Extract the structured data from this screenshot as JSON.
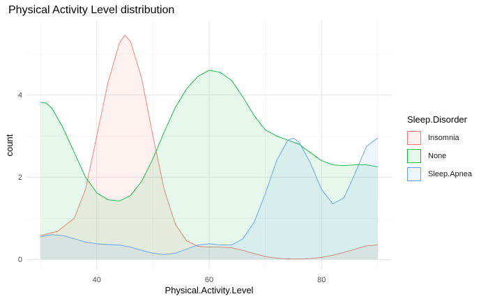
{
  "chart_data": {
    "type": "area",
    "title": "Physical Activity Level distribution",
    "xlabel": "Physical.Activity.Level",
    "ylabel": "count",
    "xlim": [
      27.5,
      92.5
    ],
    "ylim": [
      -0.25,
      5.8
    ],
    "x_ticks": [
      40,
      60,
      80
    ],
    "y_ticks": [
      0,
      2,
      4
    ],
    "grid": true,
    "legend_title": "Sleep.Disorder",
    "legend_position": "right",
    "series": [
      {
        "name": "Insomnia",
        "color": "#f8766d",
        "fill": "#f8766d",
        "points": [
          [
            30,
            0.58
          ],
          [
            33,
            0.68
          ],
          [
            36,
            1.0
          ],
          [
            38,
            1.7
          ],
          [
            40,
            3.0
          ],
          [
            42,
            4.3
          ],
          [
            44,
            5.25
          ],
          [
            45,
            5.45
          ],
          [
            46,
            5.3
          ],
          [
            48,
            4.4
          ],
          [
            50,
            3.0
          ],
          [
            52,
            1.7
          ],
          [
            54,
            0.85
          ],
          [
            56,
            0.45
          ],
          [
            58,
            0.32
          ],
          [
            60,
            0.3
          ],
          [
            62,
            0.3
          ],
          [
            64,
            0.28
          ],
          [
            66,
            0.22
          ],
          [
            68,
            0.14
          ],
          [
            70,
            0.07
          ],
          [
            72,
            0.03
          ],
          [
            74,
            0.01
          ],
          [
            76,
            0.01
          ],
          [
            78,
            0.02
          ],
          [
            80,
            0.05
          ],
          [
            82,
            0.1
          ],
          [
            84,
            0.17
          ],
          [
            86,
            0.25
          ],
          [
            88,
            0.33
          ],
          [
            90,
            0.35
          ]
        ]
      },
      {
        "name": "None",
        "color": "#00ba38",
        "fill": "#00ba38",
        "points": [
          [
            30,
            3.82
          ],
          [
            31,
            3.8
          ],
          [
            32,
            3.68
          ],
          [
            34,
            3.2
          ],
          [
            36,
            2.6
          ],
          [
            38,
            2.0
          ],
          [
            40,
            1.62
          ],
          [
            42,
            1.45
          ],
          [
            44,
            1.42
          ],
          [
            46,
            1.55
          ],
          [
            48,
            1.9
          ],
          [
            50,
            2.45
          ],
          [
            52,
            3.1
          ],
          [
            54,
            3.7
          ],
          [
            56,
            4.15
          ],
          [
            58,
            4.45
          ],
          [
            60,
            4.6
          ],
          [
            62,
            4.55
          ],
          [
            64,
            4.35
          ],
          [
            66,
            3.95
          ],
          [
            68,
            3.5
          ],
          [
            70,
            3.15
          ],
          [
            72,
            3.0
          ],
          [
            74,
            2.9
          ],
          [
            76,
            2.8
          ],
          [
            78,
            2.6
          ],
          [
            80,
            2.4
          ],
          [
            82,
            2.3
          ],
          [
            84,
            2.28
          ],
          [
            86,
            2.3
          ],
          [
            88,
            2.3
          ],
          [
            90,
            2.25
          ]
        ]
      },
      {
        "name": "Sleep.Apnea",
        "color": "#619cff",
        "fill": "#619cff",
        "points": [
          [
            30,
            0.55
          ],
          [
            32,
            0.6
          ],
          [
            34,
            0.58
          ],
          [
            36,
            0.5
          ],
          [
            38,
            0.42
          ],
          [
            40,
            0.38
          ],
          [
            42,
            0.36
          ],
          [
            44,
            0.35
          ],
          [
            46,
            0.3
          ],
          [
            48,
            0.22
          ],
          [
            50,
            0.15
          ],
          [
            52,
            0.12
          ],
          [
            54,
            0.15
          ],
          [
            56,
            0.25
          ],
          [
            58,
            0.35
          ],
          [
            60,
            0.38
          ],
          [
            62,
            0.35
          ],
          [
            64,
            0.35
          ],
          [
            66,
            0.5
          ],
          [
            68,
            0.9
          ],
          [
            70,
            1.6
          ],
          [
            72,
            2.4
          ],
          [
            74,
            2.9
          ],
          [
            75,
            2.95
          ],
          [
            76,
            2.85
          ],
          [
            78,
            2.35
          ],
          [
            80,
            1.7
          ],
          [
            82,
            1.35
          ],
          [
            84,
            1.5
          ],
          [
            86,
            2.1
          ],
          [
            88,
            2.75
          ],
          [
            90,
            2.95
          ]
        ]
      }
    ]
  }
}
